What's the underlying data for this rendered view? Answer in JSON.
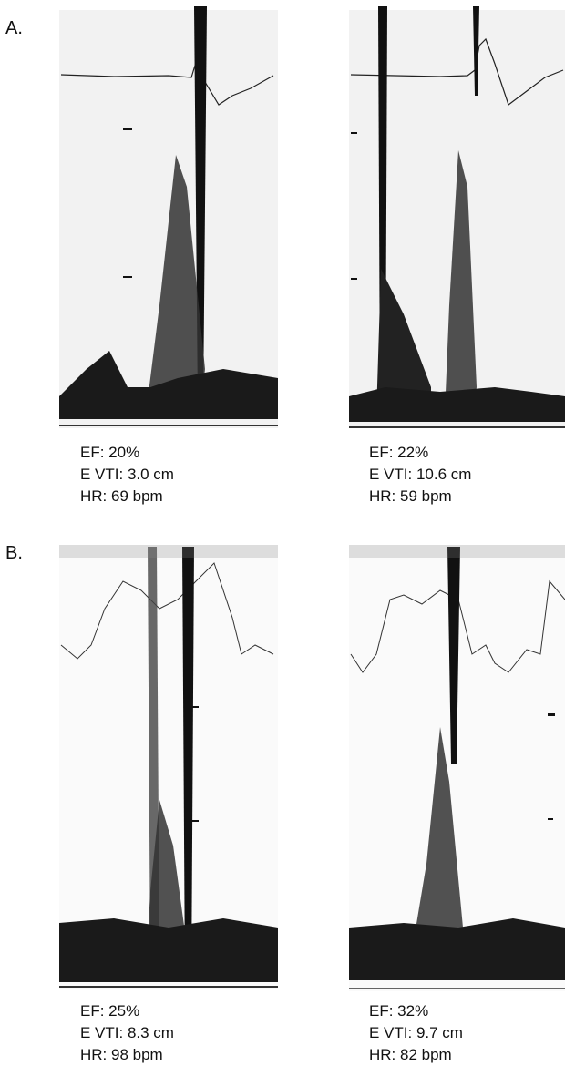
{
  "panels": [
    {
      "label": "A.",
      "images": [
        {
          "caption": [
            "EF: 20%",
            "E VTI: 3.0 cm",
            "HR: 69 bpm"
          ]
        },
        {
          "caption": [
            "EF: 22%",
            "E VTI: 10.6 cm",
            "HR: 59 bpm"
          ]
        }
      ]
    },
    {
      "label": "B.",
      "images": [
        {
          "caption": [
            "EF: 25%",
            "E VTI: 8.3 cm",
            "HR: 98 bpm"
          ]
        },
        {
          "caption": [
            "EF: 32%",
            "E VTI: 9.7 cm",
            "HR: 82 bpm"
          ]
        }
      ]
    }
  ]
}
